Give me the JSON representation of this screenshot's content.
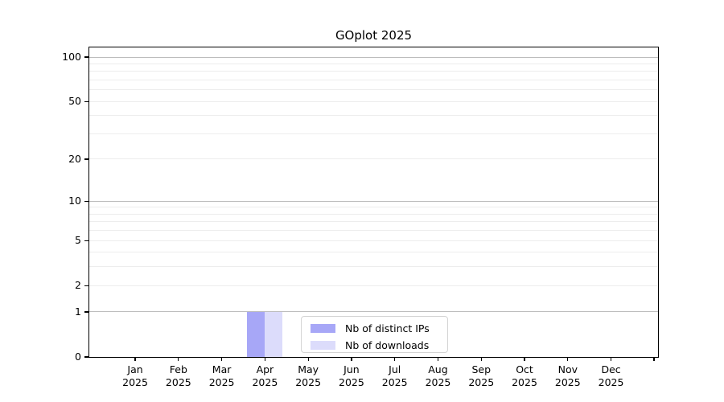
{
  "figure": {
    "title": "GOplot 2025",
    "background": "#ffffff"
  },
  "chart_data": {
    "type": "bar",
    "title": "GOplot 2025",
    "months": [
      "Jan",
      "Feb",
      "Mar",
      "Apr",
      "May",
      "Jun",
      "Jul",
      "Aug",
      "Sep",
      "Oct",
      "Nov",
      "Dec"
    ],
    "year": "2025",
    "series": [
      {
        "name": "Nb of distinct IPs",
        "color": "#a7a7f7",
        "values": [
          0,
          0,
          0,
          1,
          0,
          0,
          0,
          0,
          0,
          0,
          0,
          0
        ]
      },
      {
        "name": "Nb of downloads",
        "color": "#dcdcfb",
        "values": [
          0,
          0,
          0,
          1,
          0,
          0,
          0,
          0,
          0,
          0,
          0,
          0
        ]
      }
    ],
    "y_axis": {
      "scale": "log1p",
      "max": 100,
      "tick_labels": [
        0,
        1,
        2,
        5,
        10,
        20,
        50,
        100
      ],
      "major_gridlines": [
        1,
        10,
        100
      ],
      "minor_gridlines": [
        2,
        3,
        4,
        5,
        6,
        7,
        8,
        9,
        20,
        30,
        40,
        50,
        60,
        70,
        80,
        90
      ]
    },
    "legend": {
      "position": "lower-center",
      "entries": [
        "Nb of distinct IPs",
        "Nb of downloads"
      ]
    }
  },
  "colors": {
    "axis": "#000000",
    "major_grid": "#bdbdbd",
    "minor_grid": "#ededed",
    "bar_distinct_ips": "#a7a7f7",
    "bar_downloads": "#dcdcfb",
    "legend_border": "#d4d4d4"
  }
}
